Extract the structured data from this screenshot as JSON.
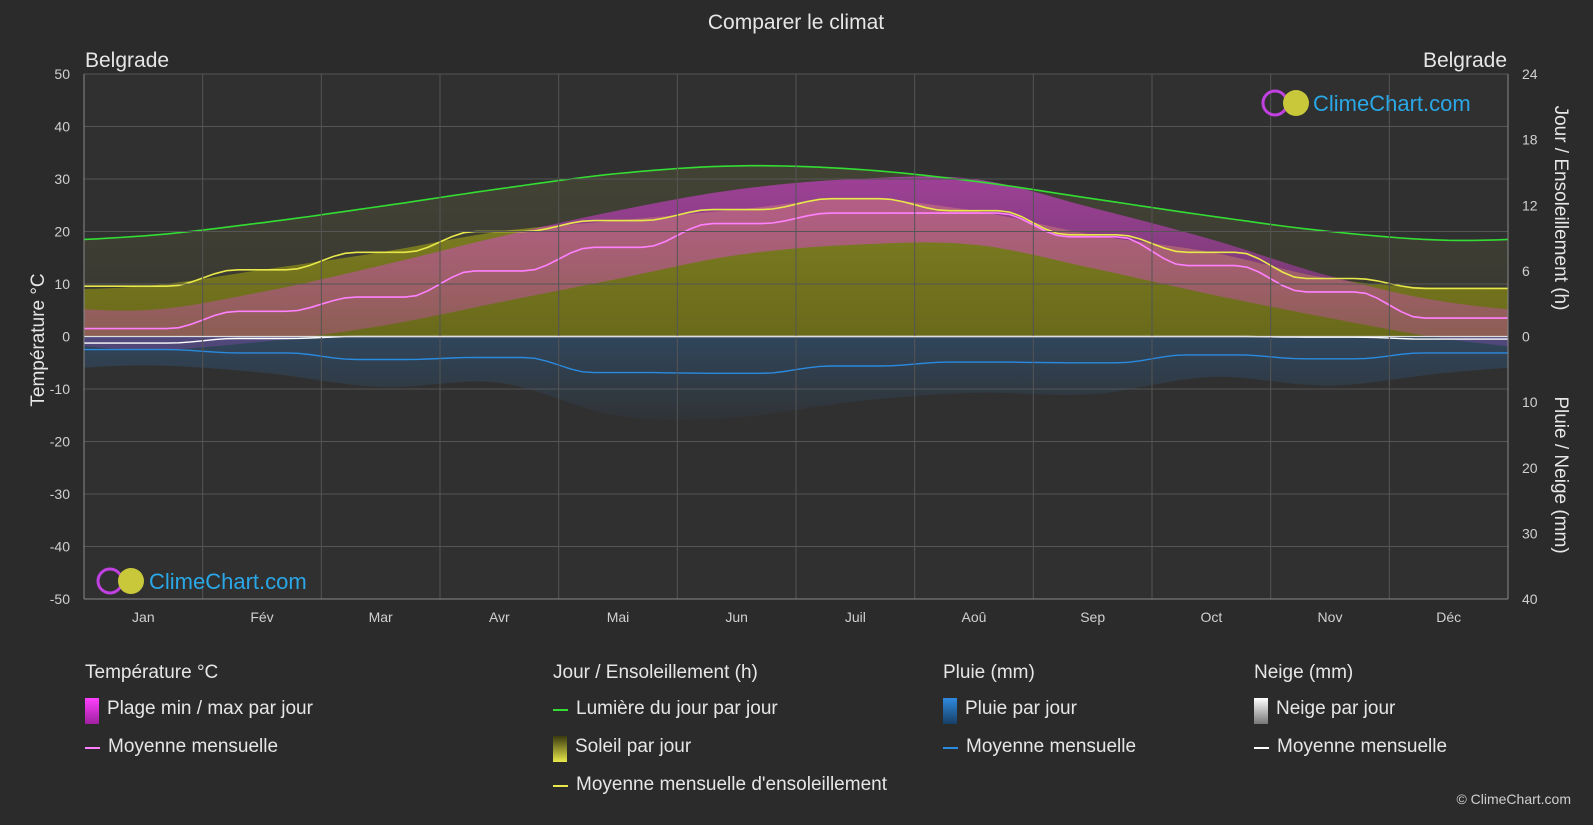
{
  "chart_title": "Comparer le climat",
  "city_left": "Belgrade",
  "city_right": "Belgrade",
  "watermark": "ClimeChart.com",
  "copyright": "© ClimeChart.com",
  "colors": {
    "background": "#2b2b2b",
    "temp_range": "#e83ee8",
    "temp_mean": "#ff80ff",
    "daylight": "#33dd33",
    "sunshine": "#9a9a20",
    "sunshine_mean": "#e8e84a",
    "rain": "#2f7fd0",
    "rain_mean": "#2a8ae0",
    "snow": "#9a9a9a",
    "snow_mean": "#ffffff",
    "grid": "#555555",
    "watermark": "#2aa7e6"
  },
  "axes": {
    "left_label": "Température °C",
    "right_top_label": "Jour / Ensoleillement (h)",
    "right_bottom_label": "Pluie / Neige (mm)",
    "left_ticks": [
      "50",
      "40",
      "30",
      "20",
      "10",
      "0",
      "-10",
      "-20",
      "-30",
      "-40",
      "-50"
    ],
    "right_top_ticks": [
      "24",
      "18",
      "12",
      "6",
      "0"
    ],
    "right_bottom_ticks": [
      "10",
      "20",
      "30",
      "40"
    ],
    "months": [
      "Jan",
      "Fév",
      "Mar",
      "Avr",
      "Mai",
      "Jun",
      "Juil",
      "Aoû",
      "Sep",
      "Oct",
      "Nov",
      "Déc"
    ]
  },
  "legend": {
    "temp": {
      "title": "Température °C",
      "items": [
        "Plage min / max par jour",
        "Moyenne mensuelle"
      ]
    },
    "sun": {
      "title": "Jour / Ensoleillement (h)",
      "items": [
        "Lumière du jour par jour",
        "Soleil par jour",
        "Moyenne mensuelle d'ensoleillement"
      ]
    },
    "rain": {
      "title": "Pluie (mm)",
      "items": [
        "Pluie par jour",
        "Moyenne mensuelle"
      ]
    },
    "snow": {
      "title": "Neige (mm)",
      "items": [
        "Neige par jour",
        "Moyenne mensuelle"
      ]
    }
  },
  "chart_data": {
    "type": "line",
    "title": "Comparer le climat",
    "x": [
      "Jan",
      "Fév",
      "Mar",
      "Avr",
      "Mai",
      "Jun",
      "Juil",
      "Aoû",
      "Sep",
      "Oct",
      "Nov",
      "Déc"
    ],
    "y_left": {
      "label": "Température °C",
      "range": [
        -50,
        50
      ]
    },
    "y_right_top": {
      "label": "Jour / Ensoleillement (h)",
      "range": [
        0,
        24
      ]
    },
    "y_right_bottom": {
      "label": "Pluie / Neige (mm)",
      "range": [
        0,
        40
      ]
    },
    "grid": true,
    "series": [
      {
        "name": "Lumière du jour par jour",
        "unit": "h",
        "values": [
          9.2,
          10.4,
          11.9,
          13.5,
          14.9,
          15.6,
          15.3,
          14.2,
          12.6,
          11.0,
          9.6,
          8.8
        ]
      },
      {
        "name": "Moyenne mensuelle d'ensoleillement",
        "unit": "h",
        "values": [
          4.6,
          6.1,
          7.7,
          9.6,
          10.6,
          11.6,
          12.6,
          11.5,
          9.3,
          7.7,
          5.3,
          4.4
        ]
      },
      {
        "name": "Moyenne mensuelle",
        "metric": "temperature",
        "unit": "°C",
        "values": [
          1.5,
          4.8,
          7.5,
          12.5,
          17.0,
          21.5,
          23.5,
          23.5,
          19.0,
          13.5,
          8.5,
          3.5
        ]
      },
      {
        "name": "Moyenne mensuelle",
        "metric": "rain",
        "unit": "mm",
        "values": [
          2.0,
          2.5,
          3.5,
          3.2,
          5.5,
          5.6,
          4.5,
          3.9,
          4.0,
          2.8,
          3.4,
          2.5
        ]
      },
      {
        "name": "Moyenne mensuelle",
        "metric": "snow",
        "unit": "mm",
        "values": [
          1.0,
          0.3,
          0.0,
          0.0,
          0.0,
          0.0,
          0.0,
          0.0,
          0.0,
          0.0,
          0.1,
          0.4
        ]
      },
      {
        "name": "Plage min / max par jour",
        "unit": "°C",
        "min": [
          -2.5,
          -1.0,
          2.0,
          6.5,
          11.0,
          15.5,
          17.5,
          17.5,
          13.0,
          8.0,
          3.5,
          -0.5
        ],
        "max": [
          5.0,
          8.5,
          13.5,
          19.0,
          24.0,
          28.0,
          30.0,
          30.0,
          24.5,
          18.5,
          11.5,
          6.5
        ]
      }
    ]
  }
}
